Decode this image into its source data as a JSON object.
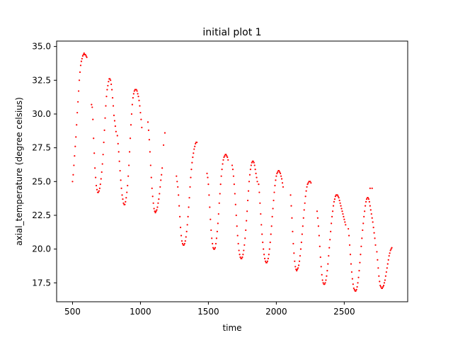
{
  "chart_data": {
    "type": "scatter",
    "title": "initial plot 1",
    "xlabel": "time",
    "ylabel": "axial_temperature (degree celsius)",
    "xlim": [
      383,
      2967
    ],
    "ylim": [
      16.1,
      35.4
    ],
    "xticks": [
      500,
      1000,
      1500,
      2000,
      2500
    ],
    "xtick_labels": [
      "500",
      "1000",
      "1500",
      "2000",
      "2500"
    ],
    "yticks": [
      17.5,
      20.0,
      22.5,
      25.0,
      27.5,
      30.0,
      32.5,
      35.0
    ],
    "ytick_labels": [
      "17.5",
      "20.0",
      "22.5",
      "25.0",
      "27.5",
      "30.0",
      "32.5",
      "35.0"
    ],
    "grid": false,
    "marker_color": "#ff0000",
    "series": [
      {
        "x": [
          500,
          505,
          510,
          515,
          520,
          525,
          530,
          535,
          540,
          545,
          550,
          555,
          560,
          565,
          570,
          575,
          580,
          585,
          590,
          595,
          600,
          605,
          640,
          645,
          650,
          655,
          660,
          665,
          670,
          675,
          680,
          685,
          690,
          695,
          700,
          705,
          710,
          715,
          720,
          725,
          730,
          735,
          740,
          745,
          750,
          755,
          760,
          765,
          770,
          775,
          780,
          785,
          790,
          795,
          800,
          805,
          810,
          815,
          820,
          830,
          835,
          840,
          845,
          850,
          855,
          860,
          865,
          870,
          875,
          880,
          885,
          890,
          895,
          900,
          905,
          910,
          915,
          920,
          925,
          930,
          935,
          940,
          945,
          950,
          955,
          960,
          965,
          970,
          975,
          980,
          985,
          990,
          995,
          1000,
          1005,
          1010,
          1055,
          1060,
          1065,
          1070,
          1075,
          1080,
          1085,
          1090,
          1095,
          1100,
          1105,
          1110,
          1115,
          1120,
          1125,
          1130,
          1135,
          1140,
          1145,
          1150,
          1155,
          1160,
          1170,
          1180,
          1265,
          1270,
          1275,
          1280,
          1285,
          1290,
          1295,
          1300,
          1305,
          1310,
          1315,
          1320,
          1325,
          1330,
          1335,
          1340,
          1345,
          1350,
          1355,
          1360,
          1365,
          1370,
          1375,
          1380,
          1385,
          1390,
          1395,
          1400,
          1405,
          1410,
          1415,
          1490,
          1495,
          1500,
          1505,
          1510,
          1515,
          1520,
          1525,
          1530,
          1535,
          1540,
          1545,
          1550,
          1555,
          1560,
          1565,
          1570,
          1575,
          1580,
          1585,
          1590,
          1595,
          1600,
          1605,
          1610,
          1615,
          1620,
          1625,
          1630,
          1635,
          1640,
          1645,
          1675,
          1680,
          1685,
          1690,
          1695,
          1700,
          1705,
          1710,
          1715,
          1720,
          1725,
          1730,
          1735,
          1740,
          1745,
          1750,
          1755,
          1760,
          1765,
          1770,
          1775,
          1780,
          1785,
          1790,
          1795,
          1800,
          1805,
          1810,
          1815,
          1820,
          1825,
          1830,
          1835,
          1840,
          1845,
          1850,
          1855,
          1860,
          1870,
          1875,
          1880,
          1885,
          1890,
          1895,
          1900,
          1905,
          1910,
          1915,
          1920,
          1925,
          1930,
          1935,
          1940,
          1945,
          1950,
          1955,
          1960,
          1965,
          1970,
          1975,
          1980,
          1985,
          1990,
          1995,
          2000,
          2005,
          2010,
          2015,
          2020,
          2025,
          2030,
          2035,
          2040,
          2045,
          2050,
          2105,
          2110,
          2115,
          2120,
          2125,
          2130,
          2135,
          2140,
          2145,
          2150,
          2155,
          2160,
          2165,
          2170,
          2175,
          2180,
          2185,
          2190,
          2195,
          2200,
          2205,
          2210,
          2215,
          2220,
          2225,
          2230,
          2235,
          2240,
          2245,
          2250,
          2255,
          2300,
          2305,
          2310,
          2315,
          2320,
          2325,
          2330,
          2335,
          2340,
          2345,
          2350,
          2355,
          2360,
          2365,
          2370,
          2375,
          2380,
          2385,
          2390,
          2395,
          2400,
          2405,
          2410,
          2415,
          2420,
          2425,
          2430,
          2435,
          2440,
          2445,
          2450,
          2455,
          2460,
          2465,
          2470,
          2475,
          2480,
          2485,
          2490,
          2495,
          2500,
          2505,
          2510,
          2530,
          2535,
          2540,
          2545,
          2550,
          2555,
          2560,
          2565,
          2570,
          2575,
          2580,
          2585,
          2590,
          2595,
          2600,
          2605,
          2610,
          2615,
          2620,
          2625,
          2630,
          2635,
          2640,
          2645,
          2650,
          2655,
          2660,
          2665,
          2670,
          2675,
          2680,
          2685,
          2690,
          2695,
          2700,
          2705,
          2710,
          2715,
          2720,
          2725,
          2730,
          2740,
          2745,
          2750,
          2755,
          2760,
          2765,
          2770,
          2775,
          2780,
          2785,
          2790,
          2795,
          2800,
          2805,
          2810,
          2815,
          2820,
          2825,
          2830,
          2835,
          2840,
          2845,
          2850,
          2690,
          2705
        ],
        "y": [
          25.0,
          25.5,
          26.2,
          26.9,
          27.6,
          28.3,
          29.2,
          30.1,
          30.9,
          31.7,
          32.5,
          33.1,
          33.6,
          33.9,
          34.1,
          34.3,
          34.4,
          34.5,
          34.4,
          34.4,
          34.3,
          34.2,
          30.7,
          30.5,
          29.6,
          28.2,
          27.1,
          26.0,
          25.3,
          24.7,
          24.4,
          24.2,
          24.2,
          24.3,
          24.5,
          24.8,
          25.2,
          25.7,
          26.3,
          27.0,
          27.9,
          28.8,
          29.7,
          30.6,
          31.3,
          31.8,
          32.1,
          32.4,
          32.6,
          32.6,
          32.5,
          32.2,
          31.8,
          31.2,
          30.6,
          29.9,
          29.5,
          29.1,
          28.7,
          28.4,
          27.8,
          27.2,
          26.5,
          25.8,
          25.1,
          24.5,
          24.0,
          23.7,
          23.4,
          23.3,
          23.3,
          23.5,
          23.8,
          24.2,
          24.7,
          25.4,
          26.2,
          27.2,
          28.2,
          29.2,
          30.0,
          30.7,
          31.2,
          31.5,
          31.7,
          31.8,
          31.8,
          31.8,
          31.7,
          31.5,
          31.3,
          31.0,
          30.6,
          30.1,
          29.6,
          29.0,
          29.4,
          28.8,
          28.1,
          27.2,
          26.2,
          25.3,
          24.5,
          23.9,
          23.4,
          23.0,
          22.8,
          22.7,
          22.8,
          22.9,
          23.1,
          23.4,
          23.7,
          24.1,
          24.6,
          25.1,
          25.5,
          26.0,
          27.7,
          28.6,
          25.4,
          25.0,
          24.6,
          24.0,
          23.2,
          22.4,
          21.6,
          21.0,
          20.6,
          20.4,
          20.3,
          20.3,
          20.4,
          20.6,
          20.9,
          21.3,
          21.8,
          22.4,
          23.1,
          23.8,
          24.6,
          25.3,
          25.9,
          26.4,
          26.8,
          27.1,
          27.4,
          27.6,
          27.8,
          27.9,
          27.9,
          25.6,
          25.3,
          24.8,
          24.0,
          23.1,
          22.2,
          21.4,
          20.8,
          20.4,
          20.1,
          20.0,
          20.0,
          20.1,
          20.4,
          20.8,
          21.3,
          21.9,
          22.6,
          23.4,
          24.1,
          24.8,
          25.4,
          25.9,
          26.3,
          26.6,
          26.8,
          26.9,
          27.0,
          27.0,
          26.9,
          26.8,
          26.6,
          26.2,
          25.9,
          25.4,
          24.8,
          24.1,
          23.3,
          22.5,
          21.7,
          21.0,
          20.4,
          19.9,
          19.6,
          19.4,
          19.3,
          19.3,
          19.4,
          19.6,
          19.9,
          20.3,
          20.8,
          21.4,
          22.1,
          22.8,
          23.6,
          24.3,
          25.0,
          25.5,
          25.9,
          26.2,
          26.4,
          26.5,
          26.5,
          26.4,
          26.2,
          25.9,
          25.6,
          25.3,
          25.0,
          24.8,
          24.2,
          23.4,
          22.6,
          21.8,
          21.1,
          20.5,
          20.0,
          19.6,
          19.3,
          19.1,
          19.0,
          19.0,
          19.1,
          19.3,
          19.6,
          20.0,
          20.5,
          21.1,
          21.7,
          22.4,
          23.0,
          23.6,
          24.2,
          24.7,
          25.1,
          25.4,
          25.6,
          25.7,
          25.8,
          25.8,
          25.7,
          25.6,
          25.4,
          25.2,
          24.9,
          24.6,
          24.0,
          23.2,
          22.3,
          21.3,
          20.4,
          19.7,
          19.1,
          18.7,
          18.5,
          18.4,
          18.5,
          18.6,
          18.8,
          19.1,
          19.5,
          20.0,
          20.5,
          21.1,
          21.7,
          22.3,
          22.9,
          23.4,
          23.9,
          24.3,
          24.6,
          24.8,
          24.9,
          25.0,
          25.0,
          25.0,
          24.9,
          22.8,
          22.3,
          21.7,
          21.0,
          20.2,
          19.4,
          18.7,
          18.1,
          17.7,
          17.5,
          17.4,
          17.4,
          17.5,
          17.7,
          18.0,
          18.4,
          18.9,
          19.5,
          20.1,
          20.7,
          21.3,
          21.9,
          22.4,
          22.8,
          23.2,
          23.5,
          23.7,
          23.9,
          24.0,
          24.0,
          24.0,
          23.9,
          23.8,
          23.6,
          23.4,
          23.2,
          23.0,
          22.8,
          22.6,
          22.4,
          22.2,
          22.0,
          21.8,
          21.5,
          21.0,
          20.3,
          19.6,
          18.9,
          18.3,
          17.8,
          17.4,
          17.1,
          17.0,
          16.9,
          16.9,
          17.0,
          17.2,
          17.5,
          17.9,
          18.4,
          19.0,
          19.6,
          20.2,
          20.8,
          21.4,
          21.9,
          22.4,
          22.8,
          23.2,
          23.5,
          23.7,
          23.8,
          23.8,
          23.7,
          23.5,
          23.2,
          22.9,
          22.6,
          22.3,
          22.0,
          21.6,
          21.2,
          20.8,
          20.3,
          19.8,
          19.2,
          18.6,
          18.0,
          17.6,
          17.3,
          17.2,
          17.1,
          17.1,
          17.2,
          17.3,
          17.5,
          17.7,
          18.0,
          18.3,
          18.6,
          18.9,
          19.2,
          19.5,
          19.7,
          19.9,
          20.0,
          20.1,
          24.5,
          24.5
        ]
      }
    ]
  }
}
